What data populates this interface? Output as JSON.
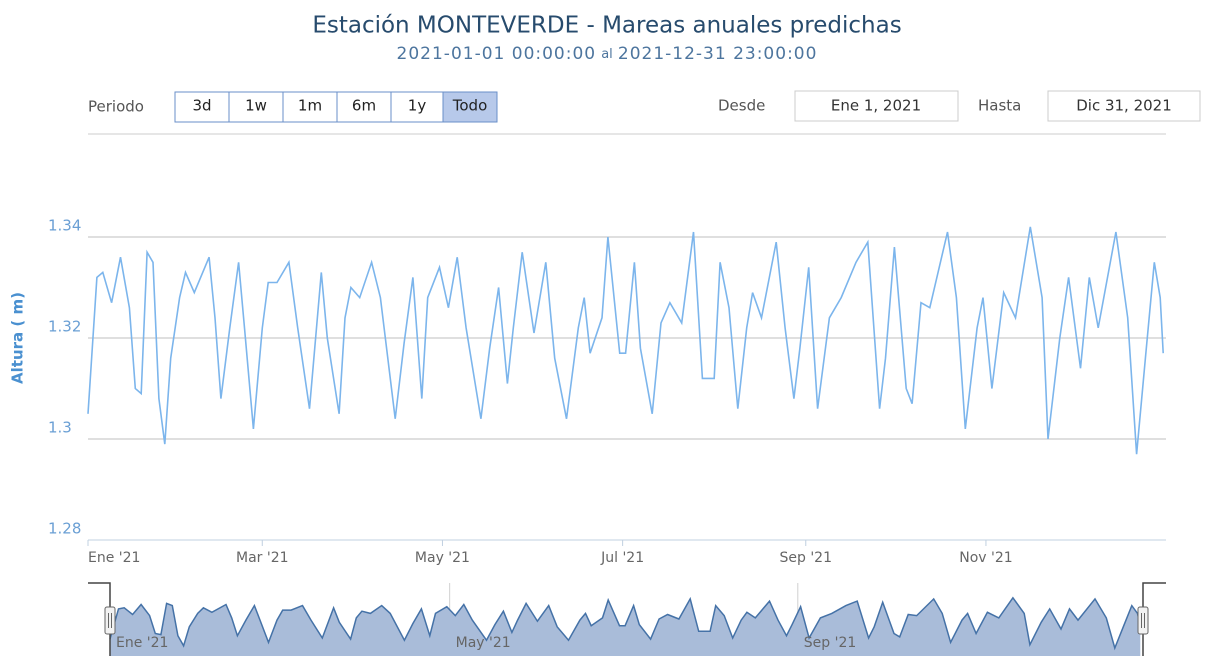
{
  "chart_data": {
    "type": "line",
    "title": "Estación MONTEVERDE - Mareas anuales predichas",
    "subtitle_separator": "al",
    "range_selector": {
      "label": "Periodo",
      "buttons": [
        "3d",
        "1w",
        "1m",
        "6m",
        "1y",
        "Todo"
      ],
      "selected": 5,
      "from_label": "Desde",
      "from_value": "Ene 1, 2021",
      "to_label": "Hasta",
      "to_value": "Dic 31, 2021"
    },
    "y_label": "Altura ( m)",
    "xlim": [
      "2021-01-01 00:00:00",
      "2021-12-31 23:00:00"
    ],
    "xticks": [
      {
        "value": "2021-01",
        "label": "Ene '21"
      },
      {
        "value": "2021-03",
        "label": "Mar '21"
      },
      {
        "value": "2021-05",
        "label": "May '21"
      },
      {
        "value": "2021-07",
        "label": "Jul '21"
      },
      {
        "value": "2021-09",
        "label": "Sep '21"
      },
      {
        "value": "2021-11",
        "label": "Nov '21"
      }
    ],
    "navigator_xticks": [
      {
        "value": "2021-01",
        "label": "Ene '21"
      },
      {
        "value": "2021-05",
        "label": "May '21"
      },
      {
        "value": "2021-09",
        "label": "Sep '21"
      }
    ],
    "ylim": [
      1.28,
      1.34
    ],
    "yticks": [
      1.28,
      1.3,
      1.32,
      1.34
    ],
    "grid": true,
    "color": "#7cb5ec",
    "navigator_color": "#a9bcd9",
    "x": [
      "2021-01-01",
      "2021-01-04",
      "2021-01-06",
      "2021-01-09",
      "2021-01-12",
      "2021-01-15",
      "2021-01-17",
      "2021-01-19",
      "2021-01-21",
      "2021-01-23",
      "2021-01-25",
      "2021-01-27",
      "2021-01-29",
      "2021-02-01",
      "2021-02-03",
      "2021-02-06",
      "2021-02-11",
      "2021-02-13",
      "2021-02-15",
      "2021-02-18",
      "2021-02-21",
      "2021-02-23",
      "2021-02-26",
      "2021-03-01",
      "2021-03-03",
      "2021-03-06",
      "2021-03-10",
      "2021-03-13",
      "2021-03-17",
      "2021-03-21",
      "2021-03-23",
      "2021-03-27",
      "2021-03-29",
      "2021-03-31",
      "2021-04-03",
      "2021-04-07",
      "2021-04-10",
      "2021-04-15",
      "2021-04-18",
      "2021-04-21",
      "2021-04-24",
      "2021-04-26",
      "2021-04-30",
      "2021-05-03",
      "2021-05-06",
      "2021-05-09",
      "2021-05-14",
      "2021-05-17",
      "2021-05-20",
      "2021-05-23",
      "2021-05-25",
      "2021-05-28",
      "2021-06-01",
      "2021-06-05",
      "2021-06-08",
      "2021-06-12",
      "2021-06-16",
      "2021-06-18",
      "2021-06-20",
      "2021-06-24",
      "2021-06-26",
      "2021-06-30",
      "2021-07-02",
      "2021-07-05",
      "2021-07-07",
      "2021-07-11",
      "2021-07-14",
      "2021-07-17",
      "2021-07-21",
      "2021-07-25",
      "2021-07-28",
      "2021-08-01",
      "2021-08-03",
      "2021-08-06",
      "2021-08-09",
      "2021-08-12",
      "2021-08-14",
      "2021-08-17",
      "2021-08-22",
      "2021-08-25",
      "2021-08-28",
      "2021-08-30",
      "2021-09-02",
      "2021-09-05",
      "2021-09-09",
      "2021-09-13",
      "2021-09-18",
      "2021-09-22",
      "2021-09-26",
      "2021-09-28",
      "2021-10-01",
      "2021-10-05",
      "2021-10-07",
      "2021-10-10",
      "2021-10-13",
      "2021-10-19",
      "2021-10-22",
      "2021-10-25",
      "2021-10-29",
      "2021-10-31",
      "2021-11-03",
      "2021-11-07",
      "2021-11-11",
      "2021-11-16",
      "2021-11-20",
      "2021-11-22",
      "2021-11-26",
      "2021-11-29",
      "2021-12-03",
      "2021-12-06",
      "2021-12-09",
      "2021-12-15",
      "2021-12-19",
      "2021-12-22",
      "2021-12-25",
      "2021-12-28",
      "2021-12-30",
      "2021-12-31"
    ],
    "values": [
      1.305,
      1.332,
      1.333,
      1.327,
      1.336,
      1.326,
      1.31,
      1.309,
      1.337,
      1.335,
      1.308,
      1.299,
      1.316,
      1.328,
      1.333,
      1.329,
      1.336,
      1.324,
      1.308,
      1.322,
      1.335,
      1.322,
      1.302,
      1.322,
      1.331,
      1.331,
      1.335,
      1.322,
      1.306,
      1.333,
      1.32,
      1.305,
      1.324,
      1.33,
      1.328,
      1.335,
      1.328,
      1.304,
      1.319,
      1.332,
      1.308,
      1.328,
      1.334,
      1.326,
      1.336,
      1.322,
      1.304,
      1.318,
      1.33,
      1.311,
      1.322,
      1.337,
      1.321,
      1.335,
      1.316,
      1.304,
      1.322,
      1.328,
      1.317,
      1.324,
      1.34,
      1.317,
      1.317,
      1.335,
      1.318,
      1.305,
      1.323,
      1.327,
      1.323,
      1.341,
      1.312,
      1.312,
      1.335,
      1.326,
      1.306,
      1.322,
      1.329,
      1.324,
      1.339,
      1.322,
      1.308,
      1.318,
      1.334,
      1.306,
      1.324,
      1.328,
      1.335,
      1.339,
      1.306,
      1.316,
      1.338,
      1.31,
      1.307,
      1.327,
      1.326,
      1.341,
      1.328,
      1.302,
      1.322,
      1.328,
      1.31,
      1.329,
      1.324,
      1.342,
      1.328,
      1.3,
      1.32,
      1.332,
      1.314,
      1.332,
      1.322,
      1.341,
      1.324,
      1.297,
      1.316,
      1.335,
      1.328,
      1.317
    ]
  }
}
